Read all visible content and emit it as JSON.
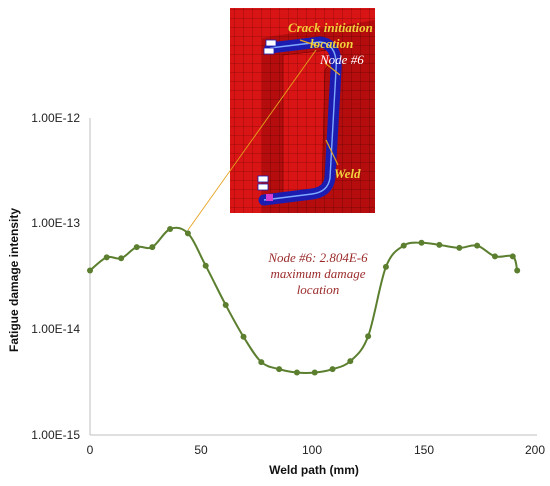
{
  "chart_data": {
    "type": "line",
    "title": "",
    "xlabel": "Weld path (mm)",
    "ylabel": "Fatigue damage intensity",
    "xlim": [
      0,
      200
    ],
    "x_ticks": [
      "0",
      "50",
      "100",
      "150",
      "200"
    ],
    "y_scale": "log",
    "ylim": [
      1e-15,
      1e-12
    ],
    "y_ticks": [
      "1.00E-15",
      "1.00E-14",
      "1.00E-13",
      "1.00E-12"
    ],
    "grid": false,
    "line_color": "#5b7f2f",
    "series": [
      {
        "x": [
          0,
          7.5,
          14,
          21,
          28,
          36,
          44,
          52,
          61,
          69,
          77,
          85,
          93,
          101,
          109,
          117,
          125,
          133,
          141,
          149,
          157,
          166,
          174,
          182,
          190,
          192
        ],
        "y": [
          3.6e-14,
          4.8e-14,
          4.7e-14,
          6e-14,
          6e-14,
          8.9e-14,
          8.1e-14,
          4e-14,
          1.7e-14,
          8.5e-15,
          4.9e-15,
          4.2e-15,
          3.9e-15,
          3.9e-15,
          4.2e-15,
          5e-15,
          8.6e-15,
          3.9e-14,
          6.2e-14,
          6.6e-14,
          6.3e-14,
          5.9e-14,
          6.2e-14,
          4.9e-14,
          4.9e-14,
          3.6e-14
        ]
      }
    ],
    "annotations": [
      {
        "text_lines": [
          "Node #6: 2.804E-6",
          "maximum damage",
          "location"
        ],
        "color": "#9b2b2b"
      }
    ],
    "inset": {
      "description_labels": {
        "crack_lines": [
          "Crack initiation",
          "location"
        ],
        "node": "Node #6",
        "weld": "Weld"
      },
      "colors": {
        "mesh": "#d81414",
        "weld": "#1c1cb0",
        "label": "#f2d23c",
        "pointer": "#e6a21e"
      }
    }
  }
}
